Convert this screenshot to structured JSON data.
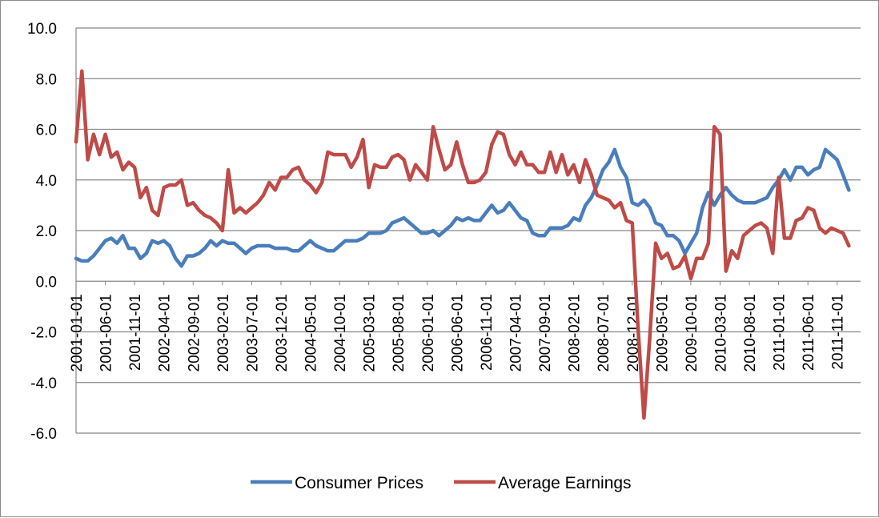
{
  "chart_data": {
    "type": "line",
    "title": "",
    "xlabel": "",
    "ylabel": "",
    "ylim": [
      -6.0,
      10.0
    ],
    "yticks": [
      "10.0",
      "8.0",
      "6.0",
      "4.0",
      "2.0",
      "0.0",
      "-2.0",
      "-4.0",
      "-6.0"
    ],
    "yticks_values": [
      10,
      8,
      6,
      4,
      2,
      0,
      -2,
      -4,
      -6
    ],
    "xlim": [
      "2001-01-01",
      "2012-03-01"
    ],
    "xticks": [
      "2001-01-01",
      "2001-06-01",
      "2001-11-01",
      "2002-04-01",
      "2002-09-01",
      "2003-02-01",
      "2003-07-01",
      "2003-12-01",
      "2004-05-01",
      "2004-10-01",
      "2005-03-01",
      "2005-08-01",
      "2006-01-01",
      "2006-06-01",
      "2006-11-01",
      "2007-04-01",
      "2007-09-01",
      "2008-02-01",
      "2008-07-01",
      "2008-12-01",
      "2009-05-01",
      "2009-10-01",
      "2010-03-01",
      "2010-08-01",
      "2011-01-01",
      "2011-06-01",
      "2011-11-01"
    ],
    "grid": true,
    "legend_position": "bottom",
    "series": [
      {
        "name": "Consumer Prices",
        "color": "#4a7ebb",
        "points": [
          [
            "2001-01-01",
            0.9
          ],
          [
            "2001-02-01",
            0.8
          ],
          [
            "2001-03-01",
            0.8
          ],
          [
            "2001-04-01",
            1.0
          ],
          [
            "2001-05-01",
            1.3
          ],
          [
            "2001-06-01",
            1.6
          ],
          [
            "2001-07-01",
            1.7
          ],
          [
            "2001-08-01",
            1.5
          ],
          [
            "2001-09-01",
            1.8
          ],
          [
            "2001-10-01",
            1.3
          ],
          [
            "2001-11-01",
            1.3
          ],
          [
            "2001-12-01",
            0.9
          ],
          [
            "2002-01-01",
            1.1
          ],
          [
            "2002-02-01",
            1.6
          ],
          [
            "2002-03-01",
            1.5
          ],
          [
            "2002-04-01",
            1.6
          ],
          [
            "2002-05-01",
            1.4
          ],
          [
            "2002-06-01",
            0.9
          ],
          [
            "2002-07-01",
            0.6
          ],
          [
            "2002-08-01",
            1.0
          ],
          [
            "2002-09-01",
            1.0
          ],
          [
            "2002-10-01",
            1.1
          ],
          [
            "2002-11-01",
            1.3
          ],
          [
            "2002-12-01",
            1.6
          ],
          [
            "2003-01-01",
            1.4
          ],
          [
            "2003-02-01",
            1.6
          ],
          [
            "2003-03-01",
            1.5
          ],
          [
            "2003-04-01",
            1.5
          ],
          [
            "2003-05-01",
            1.3
          ],
          [
            "2003-06-01",
            1.1
          ],
          [
            "2003-07-01",
            1.3
          ],
          [
            "2003-08-01",
            1.4
          ],
          [
            "2003-09-01",
            1.4
          ],
          [
            "2003-10-01",
            1.4
          ],
          [
            "2003-11-01",
            1.3
          ],
          [
            "2003-12-01",
            1.3
          ],
          [
            "2004-01-01",
            1.3
          ],
          [
            "2004-02-01",
            1.2
          ],
          [
            "2004-03-01",
            1.2
          ],
          [
            "2004-04-01",
            1.4
          ],
          [
            "2004-05-01",
            1.6
          ],
          [
            "2004-06-01",
            1.4
          ],
          [
            "2004-07-01",
            1.3
          ],
          [
            "2004-08-01",
            1.2
          ],
          [
            "2004-09-01",
            1.2
          ],
          [
            "2004-10-01",
            1.4
          ],
          [
            "2004-11-01",
            1.6
          ],
          [
            "2004-12-01",
            1.6
          ],
          [
            "2005-01-01",
            1.6
          ],
          [
            "2005-02-01",
            1.7
          ],
          [
            "2005-03-01",
            1.9
          ],
          [
            "2005-04-01",
            1.9
          ],
          [
            "2005-05-01",
            1.9
          ],
          [
            "2005-06-01",
            2.0
          ],
          [
            "2005-07-01",
            2.3
          ],
          [
            "2005-08-01",
            2.4
          ],
          [
            "2005-09-01",
            2.5
          ],
          [
            "2005-10-01",
            2.3
          ],
          [
            "2005-11-01",
            2.1
          ],
          [
            "2005-12-01",
            1.9
          ],
          [
            "2006-01-01",
            1.9
          ],
          [
            "2006-02-01",
            2.0
          ],
          [
            "2006-03-01",
            1.8
          ],
          [
            "2006-04-01",
            2.0
          ],
          [
            "2006-05-01",
            2.2
          ],
          [
            "2006-06-01",
            2.5
          ],
          [
            "2006-07-01",
            2.4
          ],
          [
            "2006-08-01",
            2.5
          ],
          [
            "2006-09-01",
            2.4
          ],
          [
            "2006-10-01",
            2.4
          ],
          [
            "2006-11-01",
            2.7
          ],
          [
            "2006-12-01",
            3.0
          ],
          [
            "2007-01-01",
            2.7
          ],
          [
            "2007-02-01",
            2.8
          ],
          [
            "2007-03-01",
            3.1
          ],
          [
            "2007-04-01",
            2.8
          ],
          [
            "2007-05-01",
            2.5
          ],
          [
            "2007-06-01",
            2.4
          ],
          [
            "2007-07-01",
            1.9
          ],
          [
            "2007-08-01",
            1.8
          ],
          [
            "2007-09-01",
            1.8
          ],
          [
            "2007-10-01",
            2.1
          ],
          [
            "2007-11-01",
            2.1
          ],
          [
            "2007-12-01",
            2.1
          ],
          [
            "2008-01-01",
            2.2
          ],
          [
            "2008-02-01",
            2.5
          ],
          [
            "2008-03-01",
            2.4
          ],
          [
            "2008-04-01",
            3.0
          ],
          [
            "2008-05-01",
            3.3
          ],
          [
            "2008-06-01",
            3.8
          ],
          [
            "2008-07-01",
            4.4
          ],
          [
            "2008-08-01",
            4.7
          ],
          [
            "2008-09-01",
            5.2
          ],
          [
            "2008-10-01",
            4.5
          ],
          [
            "2008-11-01",
            4.1
          ],
          [
            "2008-12-01",
            3.1
          ],
          [
            "2009-01-01",
            3.0
          ],
          [
            "2009-02-01",
            3.2
          ],
          [
            "2009-03-01",
            2.9
          ],
          [
            "2009-04-01",
            2.3
          ],
          [
            "2009-05-01",
            2.2
          ],
          [
            "2009-06-01",
            1.8
          ],
          [
            "2009-07-01",
            1.8
          ],
          [
            "2009-08-01",
            1.6
          ],
          [
            "2009-09-01",
            1.1
          ],
          [
            "2009-10-01",
            1.5
          ],
          [
            "2009-11-01",
            1.9
          ],
          [
            "2009-12-01",
            2.9
          ],
          [
            "2010-01-01",
            3.5
          ],
          [
            "2010-02-01",
            3.0
          ],
          [
            "2010-03-01",
            3.4
          ],
          [
            "2010-04-01",
            3.7
          ],
          [
            "2010-05-01",
            3.4
          ],
          [
            "2010-06-01",
            3.2
          ],
          [
            "2010-07-01",
            3.1
          ],
          [
            "2010-08-01",
            3.1
          ],
          [
            "2010-09-01",
            3.1
          ],
          [
            "2010-10-01",
            3.2
          ],
          [
            "2010-11-01",
            3.3
          ],
          [
            "2010-12-01",
            3.7
          ],
          [
            "2011-01-01",
            4.0
          ],
          [
            "2011-02-01",
            4.4
          ],
          [
            "2011-03-01",
            4.0
          ],
          [
            "2011-04-01",
            4.5
          ],
          [
            "2011-05-01",
            4.5
          ],
          [
            "2011-06-01",
            4.2
          ],
          [
            "2011-07-01",
            4.4
          ],
          [
            "2011-08-01",
            4.5
          ],
          [
            "2011-09-01",
            5.2
          ],
          [
            "2011-10-01",
            5.0
          ],
          [
            "2011-11-01",
            4.8
          ],
          [
            "2011-12-01",
            4.2
          ],
          [
            "2012-01-01",
            3.6
          ]
        ]
      },
      {
        "name": "Average Earnings",
        "color": "#be4b48",
        "points": [
          [
            "2001-01-01",
            5.5
          ],
          [
            "2001-02-01",
            8.3
          ],
          [
            "2001-03-01",
            4.8
          ],
          [
            "2001-04-01",
            5.8
          ],
          [
            "2001-05-01",
            5.0
          ],
          [
            "2001-06-01",
            5.8
          ],
          [
            "2001-07-01",
            4.9
          ],
          [
            "2001-08-01",
            5.1
          ],
          [
            "2001-09-01",
            4.4
          ],
          [
            "2001-10-01",
            4.7
          ],
          [
            "2001-11-01",
            4.5
          ],
          [
            "2001-12-01",
            3.3
          ],
          [
            "2002-01-01",
            3.7
          ],
          [
            "2002-02-01",
            2.8
          ],
          [
            "2002-03-01",
            2.6
          ],
          [
            "2002-04-01",
            3.7
          ],
          [
            "2002-05-01",
            3.8
          ],
          [
            "2002-06-01",
            3.8
          ],
          [
            "2002-07-01",
            4.0
          ],
          [
            "2002-08-01",
            3.0
          ],
          [
            "2002-09-01",
            3.1
          ],
          [
            "2002-10-01",
            2.8
          ],
          [
            "2002-11-01",
            2.6
          ],
          [
            "2002-12-01",
            2.5
          ],
          [
            "2003-01-01",
            2.3
          ],
          [
            "2003-02-01",
            2.0
          ],
          [
            "2003-03-01",
            4.4
          ],
          [
            "2003-04-01",
            2.7
          ],
          [
            "2003-05-01",
            2.9
          ],
          [
            "2003-06-01",
            2.7
          ],
          [
            "2003-07-01",
            2.9
          ],
          [
            "2003-08-01",
            3.1
          ],
          [
            "2003-09-01",
            3.4
          ],
          [
            "2003-10-01",
            3.9
          ],
          [
            "2003-11-01",
            3.6
          ],
          [
            "2003-12-01",
            4.1
          ],
          [
            "2004-01-01",
            4.1
          ],
          [
            "2004-02-01",
            4.4
          ],
          [
            "2004-03-01",
            4.5
          ],
          [
            "2004-04-01",
            4.0
          ],
          [
            "2004-05-01",
            3.8
          ],
          [
            "2004-06-01",
            3.5
          ],
          [
            "2004-07-01",
            3.9
          ],
          [
            "2004-08-01",
            5.1
          ],
          [
            "2004-09-01",
            5.0
          ],
          [
            "2004-10-01",
            5.0
          ],
          [
            "2004-11-01",
            5.0
          ],
          [
            "2004-12-01",
            4.5
          ],
          [
            "2005-01-01",
            4.9
          ],
          [
            "2005-02-01",
            5.6
          ],
          [
            "2005-03-01",
            3.7
          ],
          [
            "2005-04-01",
            4.6
          ],
          [
            "2005-05-01",
            4.5
          ],
          [
            "2005-06-01",
            4.5
          ],
          [
            "2005-07-01",
            4.9
          ],
          [
            "2005-08-01",
            5.0
          ],
          [
            "2005-09-01",
            4.8
          ],
          [
            "2005-10-01",
            4.0
          ],
          [
            "2005-11-01",
            4.6
          ],
          [
            "2005-12-01",
            4.3
          ],
          [
            "2006-01-01",
            4.0
          ],
          [
            "2006-02-01",
            6.1
          ],
          [
            "2006-03-01",
            5.2
          ],
          [
            "2006-04-01",
            4.4
          ],
          [
            "2006-05-01",
            4.6
          ],
          [
            "2006-06-01",
            5.5
          ],
          [
            "2006-07-01",
            4.6
          ],
          [
            "2006-08-01",
            3.9
          ],
          [
            "2006-09-01",
            3.9
          ],
          [
            "2006-10-01",
            4.0
          ],
          [
            "2006-11-01",
            4.3
          ],
          [
            "2006-12-01",
            5.4
          ],
          [
            "2007-01-01",
            5.9
          ],
          [
            "2007-02-01",
            5.8
          ],
          [
            "2007-03-01",
            5.0
          ],
          [
            "2007-04-01",
            4.6
          ],
          [
            "2007-05-01",
            5.1
          ],
          [
            "2007-06-01",
            4.6
          ],
          [
            "2007-07-01",
            4.6
          ],
          [
            "2007-08-01",
            4.3
          ],
          [
            "2007-09-01",
            4.3
          ],
          [
            "2007-10-01",
            5.1
          ],
          [
            "2007-11-01",
            4.3
          ],
          [
            "2007-12-01",
            5.0
          ],
          [
            "2008-01-01",
            4.2
          ],
          [
            "2008-02-01",
            4.6
          ],
          [
            "2008-03-01",
            3.9
          ],
          [
            "2008-04-01",
            4.8
          ],
          [
            "2008-05-01",
            4.2
          ],
          [
            "2008-06-01",
            3.4
          ],
          [
            "2008-07-01",
            3.3
          ],
          [
            "2008-08-01",
            3.2
          ],
          [
            "2008-09-01",
            2.9
          ],
          [
            "2008-10-01",
            3.1
          ],
          [
            "2008-11-01",
            2.4
          ],
          [
            "2008-12-01",
            2.3
          ],
          [
            "2009-01-01",
            -1.9
          ],
          [
            "2009-02-01",
            -5.4
          ],
          [
            "2009-03-01",
            -2.2
          ],
          [
            "2009-04-01",
            1.5
          ],
          [
            "2009-05-01",
            0.9
          ],
          [
            "2009-06-01",
            1.1
          ],
          [
            "2009-07-01",
            0.5
          ],
          [
            "2009-08-01",
            0.6
          ],
          [
            "2009-09-01",
            1.0
          ],
          [
            "2009-10-01",
            0.1
          ],
          [
            "2009-11-01",
            0.9
          ],
          [
            "2009-12-01",
            0.9
          ],
          [
            "2010-01-01",
            1.5
          ],
          [
            "2010-02-01",
            6.1
          ],
          [
            "2010-03-01",
            5.8
          ],
          [
            "2010-04-01",
            0.4
          ],
          [
            "2010-05-01",
            1.2
          ],
          [
            "2010-06-01",
            0.9
          ],
          [
            "2010-07-01",
            1.8
          ],
          [
            "2010-08-01",
            2.0
          ],
          [
            "2010-09-01",
            2.2
          ],
          [
            "2010-10-01",
            2.3
          ],
          [
            "2010-11-01",
            2.1
          ],
          [
            "2010-12-01",
            1.1
          ],
          [
            "2011-01-01",
            4.1
          ],
          [
            "2011-02-01",
            1.7
          ],
          [
            "2011-03-01",
            1.7
          ],
          [
            "2011-04-01",
            2.4
          ],
          [
            "2011-05-01",
            2.5
          ],
          [
            "2011-06-01",
            2.9
          ],
          [
            "2011-07-01",
            2.8
          ],
          [
            "2011-08-01",
            2.1
          ],
          [
            "2011-09-01",
            1.9
          ],
          [
            "2011-10-01",
            2.1
          ],
          [
            "2011-11-01",
            2.0
          ],
          [
            "2011-12-01",
            1.9
          ],
          [
            "2012-01-01",
            1.4
          ]
        ]
      }
    ]
  }
}
